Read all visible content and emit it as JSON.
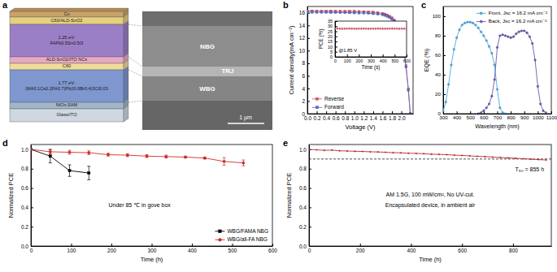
{
  "schematic": {
    "panel": "a",
    "layers": [
      {
        "lines": [
          "Cu"
        ],
        "color": "#c9a36b"
      },
      {
        "lines": [
          "C60/ALD-SnO2"
        ],
        "color": "#e6cf7e"
      },
      {
        "lines": [
          "1.25 eV-",
          "FAPb0.5Sn0.5I3"
        ],
        "color": "#9b7fc6"
      },
      {
        "lines": [
          "ALD-SnO2/ITO NCs"
        ],
        "color": "#e9a9c4"
      },
      {
        "lines": [
          "C60"
        ],
        "color": "#efdc9a"
      },
      {
        "lines": [
          "1.77 eV-",
          "(MA0.1Cs0.2FA0.7)Pb(I0.6Br0.4)3Cl0.03"
        ],
        "color": "#7f97cf"
      },
      {
        "lines": [
          "NiOx-SAM"
        ],
        "color": "#9fb7c9"
      },
      {
        "lines": [
          "Glass/ITO"
        ],
        "color": "#cfd8e0"
      }
    ],
    "sem": {
      "labels": [
        "NBG",
        "TRJ",
        "WBG"
      ],
      "scale_bar": "1 μm"
    }
  },
  "chart_data": [
    {
      "panel": "b",
      "type": "line",
      "xlabel": "Voltage (V)",
      "ylabel": "Current density(mA cm⁻²)",
      "x": [
        0,
        0.1,
        0.2,
        0.3,
        0.4,
        0.5,
        0.6,
        0.7,
        0.8,
        0.9,
        1.0,
        1.1,
        1.2,
        1.3,
        1.4,
        1.5,
        1.6,
        1.65,
        1.7,
        1.75,
        1.8,
        1.85,
        1.9,
        1.95,
        2.0,
        2.05,
        2.1,
        2.15,
        2.19
      ],
      "series": [
        {
          "name": "Reverse",
          "color": "#e0506a",
          "marker": "square",
          "line_style": "solid",
          "values": [
            16.3,
            16.3,
            16.28,
            16.28,
            16.27,
            16.27,
            16.25,
            16.25,
            16.24,
            16.24,
            16.22,
            16.2,
            16.18,
            16.15,
            16.1,
            16.02,
            15.9,
            15.8,
            15.65,
            15.45,
            15.2,
            14.85,
            14.3,
            13.5,
            12.3,
            10.4,
            7.6,
            3.9,
            0.0
          ]
        },
        {
          "name": "Forward",
          "color": "#5b6ec8",
          "marker": "square",
          "line_style": "solid",
          "values": [
            16.1,
            16.1,
            16.08,
            16.08,
            16.07,
            16.06,
            16.05,
            16.04,
            16.03,
            16.02,
            16.0,
            15.98,
            15.96,
            15.93,
            15.88,
            15.8,
            15.7,
            15.6,
            15.45,
            15.25,
            15.0,
            14.65,
            14.1,
            13.3,
            12.1,
            10.2,
            7.4,
            3.7,
            0.0
          ]
        }
      ],
      "xlim": [
        0,
        2.25
      ],
      "xticks": [
        {
          "value": 0,
          "label": "0.0"
        },
        {
          "value": 0.2,
          "label": "0.2"
        },
        {
          "value": 0.4,
          "label": "0.4"
        },
        {
          "value": 0.6,
          "label": "0.6"
        },
        {
          "value": 0.8,
          "label": "0.8"
        },
        {
          "value": 1,
          "label": "1.0"
        },
        {
          "value": 1.2,
          "label": "1.2"
        },
        {
          "value": 1.4,
          "label": "1.4"
        },
        {
          "value": 1.6,
          "label": "1.6"
        },
        {
          "value": 1.8,
          "label": "1.8"
        },
        {
          "value": 2,
          "label": "2.0"
        }
      ],
      "ylim": [
        0,
        17
      ],
      "yticks": [
        0,
        2,
        4,
        6,
        8,
        10,
        12,
        14,
        16
      ],
      "legend": "lower left",
      "inset": {
        "type": "scatter",
        "xlabel": "Time (s)",
        "ylabel": "PCE (%)",
        "x": [
          0,
          20,
          40,
          60,
          80,
          100,
          120,
          140,
          160,
          180,
          200,
          220,
          240,
          260,
          280,
          300,
          320,
          340,
          360,
          380,
          400,
          420,
          440,
          460,
          480,
          500,
          520,
          540,
          560,
          580,
          600
        ],
        "series": [
          {
            "color": "#e0506a",
            "marker": "circle",
            "values": [
              27.6,
              27.7,
              27.6,
              27.5,
              27.6,
              27.6,
              27.7,
              27.6,
              27.6,
              27.5,
              27.6,
              27.6,
              27.7,
              27.6,
              27.5,
              27.6,
              27.6,
              27.6,
              27.7,
              27.6,
              27.5,
              27.6,
              27.6,
              27.6,
              27.7,
              27.6,
              27.6,
              27.5,
              27.6,
              27.6,
              27.6
            ]
          }
        ],
        "xlim": [
          0,
          600
        ],
        "xticks": [
          0,
          100,
          200,
          300,
          400,
          500,
          600
        ],
        "ylim": [
          0,
          35
        ],
        "yticks": [
          0,
          5,
          10,
          15,
          20,
          25,
          30,
          35
        ],
        "annotations": [
          "@1.85 V"
        ]
      }
    },
    {
      "panel": "c",
      "type": "line",
      "xlabel": "Wavelength (nm)",
      "ylabel": "EQE (%)",
      "series": [
        {
          "name": "Front, Jsc = 16.2 mA cm⁻²",
          "color": "#4aa8e0",
          "marker": "circle",
          "line_style": "solid",
          "x": [
            300,
            320,
            340,
            360,
            380,
            400,
            420,
            440,
            460,
            480,
            500,
            520,
            540,
            560,
            580,
            600,
            620,
            640,
            660,
            680,
            700,
            720,
            740,
            760
          ],
          "values": [
            3,
            12,
            30,
            50,
            66,
            78,
            86,
            91,
            93,
            94,
            94,
            93,
            91,
            88,
            84,
            80,
            75,
            69,
            62,
            50,
            25,
            6,
            1,
            0
          ]
        },
        {
          "name": "Back, Jsc = 16.2 mA cm⁻²",
          "color": "#6a5aa8",
          "marker": "circle",
          "line_style": "solid",
          "x": [
            560,
            580,
            600,
            620,
            640,
            660,
            680,
            700,
            720,
            740,
            760,
            780,
            800,
            820,
            840,
            860,
            880,
            900,
            920,
            940,
            960,
            980,
            1000,
            1020,
            1040,
            1060
          ],
          "values": [
            0,
            1,
            3,
            6,
            10,
            18,
            35,
            68,
            80,
            81,
            80,
            79,
            78,
            79,
            82,
            84,
            85,
            85,
            83,
            79,
            72,
            55,
            28,
            10,
            3,
            1
          ]
        }
      ],
      "xlim": [
        300,
        1100
      ],
      "xticks": [
        300,
        400,
        500,
        600,
        700,
        800,
        900,
        1000,
        1100
      ],
      "ylim": [
        0,
        110
      ],
      "yticks": [
        0,
        20,
        40,
        60,
        80,
        100
      ],
      "legend": "upper right"
    },
    {
      "panel": "d",
      "type": "line",
      "xlabel": "Time (h)",
      "ylabel": "Normalized PCE",
      "series": [
        {
          "name": "WBG/FAMA NBG",
          "color": "#000000",
          "marker": "square",
          "line_style": "solid",
          "x": [
            0,
            48,
            96,
            144
          ],
          "values": [
            1.0,
            0.93,
            0.78,
            0.755
          ],
          "errors": [
            0,
            0.07,
            0.06,
            0.07
          ]
        },
        {
          "name": "WBG/all-FA NBG",
          "color": "#d42a2a",
          "marker": "circle",
          "line_style": "solid",
          "x": [
            0,
            48,
            96,
            144,
            192,
            240,
            288,
            336,
            384,
            432,
            480,
            528
          ],
          "values": [
            1.0,
            0.975,
            0.97,
            0.965,
            0.945,
            0.94,
            0.93,
            0.925,
            0.92,
            0.91,
            0.875,
            0.86
          ],
          "errors": [
            0,
            0.02,
            0.02,
            0.02,
            0.015,
            0.015,
            0.015,
            0.015,
            0.01,
            0.01,
            0.04,
            0.03
          ]
        }
      ],
      "xlim": [
        0,
        600
      ],
      "xticks": [
        0,
        100,
        200,
        300,
        400,
        500,
        600
      ],
      "ylim": [
        0,
        1.05
      ],
      "yticks": [
        {
          "value": 0,
          "label": "0.0"
        },
        {
          "value": 0.2,
          "label": "0.2"
        },
        {
          "value": 0.4,
          "label": "0.4"
        },
        {
          "value": 0.6,
          "label": "0.6"
        },
        {
          "value": 0.8,
          "label": "0.8"
        },
        {
          "value": 1,
          "label": "1.0"
        }
      ],
      "legend": "lower right",
      "annotations": [
        "Under 85 ℃ in gove box"
      ]
    },
    {
      "panel": "e",
      "type": "line",
      "xlabel": "Time (h)",
      "ylabel": "Normalized PCE",
      "x": [
        0,
        30,
        60,
        90,
        120,
        150,
        180,
        210,
        240,
        270,
        300,
        330,
        360,
        390,
        420,
        450,
        480,
        510,
        540,
        570,
        600,
        630,
        660,
        690,
        720,
        750,
        780,
        810,
        840,
        870,
        900,
        930
      ],
      "series": [
        {
          "color": "#c0282d",
          "marker": "circle",
          "line_style": "solid",
          "values": [
            1.0,
            0.995,
            0.99,
            0.992,
            0.985,
            0.983,
            0.98,
            0.978,
            0.975,
            0.973,
            0.97,
            0.966,
            0.964,
            0.96,
            0.958,
            0.955,
            0.95,
            0.948,
            0.945,
            0.94,
            0.937,
            0.933,
            0.928,
            0.925,
            0.92,
            0.916,
            0.912,
            0.908,
            0.903,
            0.898,
            0.894,
            0.89
          ]
        }
      ],
      "reference_line": 0.9,
      "xlim": [
        0,
        950
      ],
      "xticks": [
        0,
        200,
        400,
        600,
        800
      ],
      "ylim": [
        0,
        1.05
      ],
      "yticks": [
        {
          "value": 0,
          "label": "0.0"
        },
        {
          "value": 0.2,
          "label": "0.2"
        },
        {
          "value": 0.4,
          "label": "0.4"
        },
        {
          "value": 0.6,
          "label": "0.6"
        },
        {
          "value": 0.8,
          "label": "0.8"
        },
        {
          "value": 1,
          "label": "1.0"
        }
      ],
      "annotations": [
        "AM 1.5G, 100 mW/cm², No UV-cut.",
        "Encapsulated device, in ambient air",
        "T₉₀ = 855 h"
      ]
    }
  ]
}
